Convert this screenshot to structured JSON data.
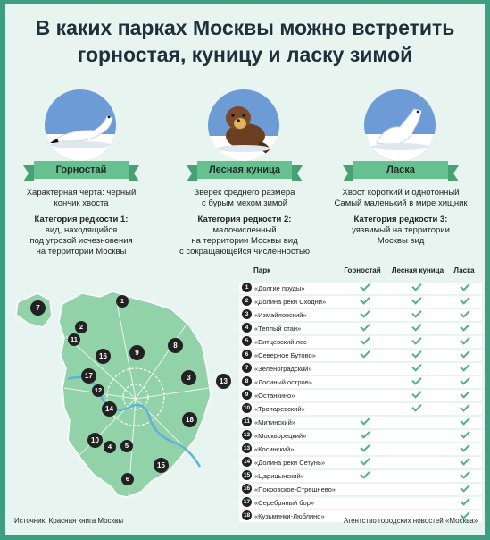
{
  "title": {
    "line1": "В каких парках Москвы можно встретить",
    "line2": "горностая, куницу и ласку зимой"
  },
  "animals": [
    {
      "name": "Горностай",
      "icon": "stoat-icon",
      "desc1": "Характерная черта: черный",
      "desc2": "кончик хвоста",
      "rarity_title": "Категория редкости 1:",
      "rarity1": "вид, находящийся",
      "rarity2": "под угрозой исчезновения",
      "rarity3": "на территории Москвы",
      "rarity4": ""
    },
    {
      "name": "Лесная куница",
      "icon": "pine-marten-icon",
      "desc1": "Зверек среднего размера",
      "desc2": "с бурым мехом зимой",
      "rarity_title": "Категория редкости 2:",
      "rarity1": "малочисленный",
      "rarity2": "на территории Москвы вид",
      "rarity3": "с сокращающейся численностью",
      "rarity4": ""
    },
    {
      "name": "Ласка",
      "icon": "weasel-icon",
      "desc1": "Хвост короткий и однотонный",
      "desc2": "Самый маленький в мире хищник",
      "rarity_title": "Категория редкости 3:",
      "rarity1": "уязвимый на территории",
      "rarity2": "Москвы вид",
      "rarity3": "",
      "rarity4": ""
    }
  ],
  "table": {
    "headers": [
      "Парк",
      "Горностай",
      "Лесная куница",
      "Ласка"
    ],
    "rows": [
      {
        "num": "1",
        "name": "«Долгие пруды»",
        "g": true,
        "k": true,
        "l": true
      },
      {
        "num": "2",
        "name": "«Долина реки Сходни»",
        "g": true,
        "k": true,
        "l": true
      },
      {
        "num": "3",
        "name": "«Измайловский»",
        "g": true,
        "k": true,
        "l": true
      },
      {
        "num": "4",
        "name": "«Теплый стан»",
        "g": true,
        "k": true,
        "l": true
      },
      {
        "num": "5",
        "name": "«Битцевский лес",
        "g": true,
        "k": true,
        "l": true
      },
      {
        "num": "6",
        "name": "«Северное Бутово»",
        "g": true,
        "k": true,
        "l": true
      },
      {
        "num": "7",
        "name": "«Зеленоградский»",
        "g": false,
        "k": true,
        "l": true
      },
      {
        "num": "8",
        "name": "«Лосиный остров»",
        "g": false,
        "k": true,
        "l": true
      },
      {
        "num": "9",
        "name": "«Останкино»",
        "g": false,
        "k": true,
        "l": true
      },
      {
        "num": "10",
        "name": "«Тропаревский»",
        "g": false,
        "k": true,
        "l": true
      },
      {
        "num": "11",
        "name": "«Митинский»",
        "g": true,
        "k": false,
        "l": true
      },
      {
        "num": "12",
        "name": "«Москворецкий»",
        "g": true,
        "k": false,
        "l": true
      },
      {
        "num": "13",
        "name": "«Косинский»",
        "g": true,
        "k": false,
        "l": true
      },
      {
        "num": "14",
        "name": "«Долина реки Сетунь»",
        "g": true,
        "k": false,
        "l": true
      },
      {
        "num": "15",
        "name": "«Царицынский»",
        "g": true,
        "k": false,
        "l": true
      },
      {
        "num": "16",
        "name": "«Покровское-Стрешнево»",
        "g": false,
        "k": false,
        "l": true
      },
      {
        "num": "17",
        "name": "«Серебряный бор»",
        "g": false,
        "k": false,
        "l": true
      },
      {
        "num": "18",
        "name": "«Кузьминки-Люблино»",
        "g": false,
        "k": false,
        "l": true
      }
    ]
  },
  "map_markers": [
    "1",
    "2",
    "3",
    "4",
    "5",
    "6",
    "7",
    "8",
    "9",
    "10",
    "11",
    "12",
    "13",
    "14",
    "15",
    "16",
    "17",
    "18"
  ],
  "footer": {
    "source": "Источник: Красная книга Москвы",
    "agency": "Агентство городских новостей «Москва»"
  },
  "colors": {
    "frame": "#3e9f80",
    "background": "#e7f4ef",
    "map_fill": "#92d2a8",
    "ribbon": "#67c08f",
    "check": "#55b27c",
    "circle": "#6c9bd6"
  }
}
